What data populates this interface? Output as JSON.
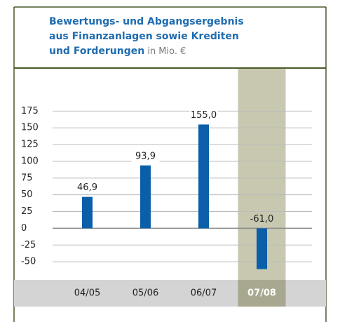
{
  "chart_data": {
    "type": "bar",
    "title_lines": [
      "Bewertungs- und Abgangsergebnis",
      "aus Finanzanlagen sowie Krediten",
      "und Forderungen"
    ],
    "unit": "in Mio. €",
    "categories": [
      "04/05",
      "05/06",
      "06/07",
      "07/08"
    ],
    "values": [
      46.9,
      93.9,
      155.0,
      -61.0
    ],
    "value_labels": [
      "46,9",
      "93,9",
      "155,0",
      "-61,0"
    ],
    "color": "#0a5fa8",
    "highlight": 3,
    "highlight_color": "#c8c8b0",
    "highlight_label_color": "#a8a890",
    "ylim": [
      -75,
      200
    ],
    "yticks": [
      -50,
      -25,
      0,
      25,
      50,
      75,
      100,
      125,
      150,
      175
    ],
    "grid": true
  }
}
